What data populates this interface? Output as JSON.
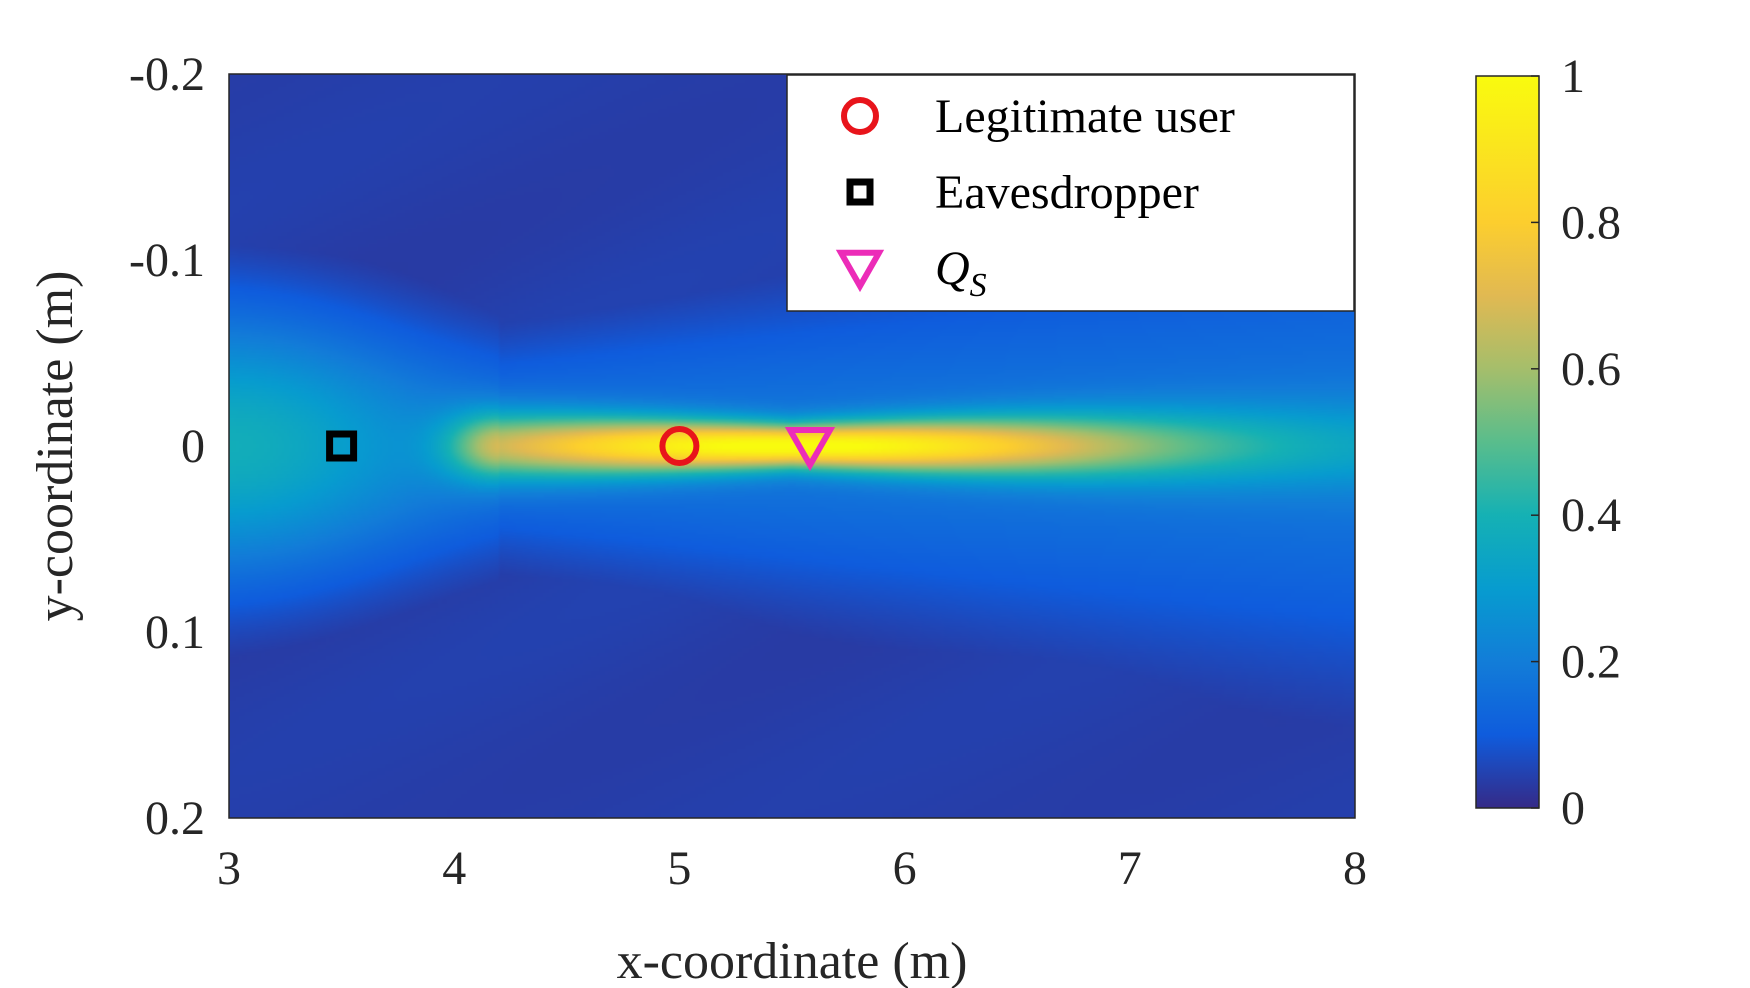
{
  "chart_data": {
    "type": "heatmap",
    "title": "",
    "xlabel": "x-coordinate (m)",
    "ylabel": "y-coordinate (m)",
    "xlim": [
      3,
      8
    ],
    "ylim": [
      -0.2,
      0.2
    ],
    "y_axis_direction": "reversed (-0.2 at top, 0.2 at bottom)",
    "x_ticks": [
      3,
      4,
      5,
      6,
      7,
      8
    ],
    "x_tick_labels": [
      "3",
      "4",
      "5",
      "6",
      "7",
      "8"
    ],
    "y_ticks": [
      -0.2,
      -0.1,
      0,
      0.1,
      0.2
    ],
    "y_tick_labels": [
      "-0.2",
      "-0.1",
      "0",
      "0.1",
      "0.2"
    ],
    "colormap": "parula",
    "colorbar": {
      "range": [
        0,
        1
      ],
      "ticks": [
        0,
        0.2,
        0.4,
        0.6,
        0.8,
        1
      ],
      "tick_labels": [
        "0",
        "0.2",
        "0.4",
        "0.6",
        "0.8",
        "1"
      ]
    },
    "field_description": {
      "peak_x": 5.5,
      "peak_y": 0,
      "peak_value": 0.85,
      "beam_start_x": 4.2,
      "beam_end_x": 8.0
    },
    "markers": [
      {
        "name": "Legitimate user",
        "x": 5.0,
        "y": 0.0,
        "marker": "circle",
        "color": "#e8141b"
      },
      {
        "name": "Eavesdropper",
        "x": 3.5,
        "y": 0.0,
        "marker": "square",
        "color": "#000000"
      },
      {
        "name": "Q_S",
        "x": 5.58,
        "y": 0.0,
        "marker": "triangle-down",
        "color": "#ec2cb8"
      }
    ],
    "legend": {
      "position": "top-right",
      "entries": [
        {
          "label": "Legitimate user",
          "marker": "circle",
          "color": "#e8141b"
        },
        {
          "label": "Eavesdropper",
          "marker": "square",
          "color": "#000000"
        },
        {
          "label_main": "Q",
          "label_sub": "S",
          "marker": "triangle-down",
          "color": "#ec2cb8"
        }
      ]
    },
    "grid": false
  }
}
